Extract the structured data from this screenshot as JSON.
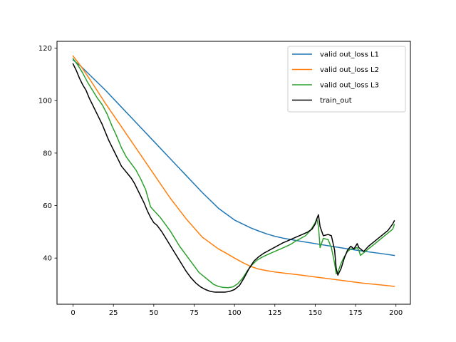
{
  "chart_data": {
    "type": "line",
    "title": "",
    "xlabel": "",
    "ylabel": "",
    "xlim": [
      -9.95,
      208.95
    ],
    "ylim": [
      22.4,
      122.6
    ],
    "xticks": [
      0,
      25,
      50,
      75,
      100,
      125,
      150,
      175,
      200
    ],
    "yticks": [
      40,
      60,
      80,
      100,
      120
    ],
    "grid": false,
    "legend_position": "top-right",
    "series": [
      {
        "name": "valid out_loss L1",
        "color": "#1f77b4",
        "x": [
          0,
          5,
          10,
          20,
          30,
          40,
          50,
          60,
          70,
          80,
          90,
          100,
          105,
          110,
          115,
          120,
          125,
          130,
          140,
          150,
          160,
          170,
          180,
          190,
          199
        ],
        "y": [
          115.5,
          113,
          110,
          104,
          97.5,
          91,
          84.5,
          78,
          71.5,
          65,
          59,
          54.5,
          53,
          51.5,
          50.3,
          49.2,
          48.3,
          47.6,
          46.5,
          45.5,
          44.5,
          43.5,
          42.6,
          41.8,
          41.0
        ]
      },
      {
        "name": "valid out_loss L2",
        "color": "#ff7f0e",
        "x": [
          0,
          5,
          10,
          20,
          30,
          40,
          50,
          60,
          70,
          80,
          90,
          95,
          100,
          105,
          110,
          115,
          120,
          125,
          130,
          140,
          150,
          160,
          170,
          180,
          190,
          199
        ],
        "y": [
          117,
          113,
          108.5,
          99,
          90,
          81,
          72,
          63,
          55,
          48,
          43.5,
          41.8,
          40,
          38.3,
          36.8,
          35.8,
          35.2,
          34.7,
          34.3,
          33.6,
          32.8,
          32,
          31.2,
          30.4,
          29.8,
          29.2
        ]
      },
      {
        "name": "valid out_loss L3",
        "color": "#2ca02c",
        "x": [
          0,
          3,
          6,
          9,
          12,
          15,
          18,
          21,
          24,
          27,
          30,
          33,
          36,
          39,
          42,
          45,
          48,
          51,
          54,
          57,
          60,
          63,
          66,
          69,
          72,
          75,
          78,
          81,
          84,
          87,
          90,
          93,
          96,
          99,
          102,
          105,
          108,
          111,
          114,
          117,
          120,
          123,
          126,
          129,
          132,
          135,
          138,
          141,
          144,
          147,
          150,
          151,
          152,
          153,
          155,
          158,
          160,
          162,
          163,
          164,
          166,
          168,
          170,
          172,
          174,
          176,
          177,
          178,
          180,
          183,
          186,
          189,
          192,
          195,
          198,
          199
        ],
        "y": [
          116,
          113.5,
          110.5,
          107,
          104,
          101,
          98.5,
          95,
          90.5,
          86.5,
          82,
          78.5,
          76,
          73.5,
          70,
          66,
          59.5,
          57.5,
          55.5,
          53,
          50.5,
          47.5,
          44.5,
          42,
          39.5,
          37,
          34.5,
          33,
          31.5,
          30,
          29.2,
          28.8,
          28.7,
          29,
          30.2,
          32.3,
          35.2,
          37.5,
          39.2,
          40.3,
          41.2,
          42,
          42.8,
          43.6,
          44.4,
          45.3,
          46.5,
          47.5,
          48.5,
          50.5,
          53.5,
          55,
          52,
          44,
          47.5,
          47,
          44,
          38,
          34,
          34.5,
          38,
          40.5,
          42.5,
          43.5,
          43.5,
          44,
          43,
          41,
          42,
          43.5,
          45,
          46.5,
          48,
          49.5,
          51,
          52.8
        ]
      },
      {
        "name": "train_out",
        "color": "#000000",
        "x": [
          0,
          2,
          4,
          6,
          8,
          10,
          12,
          14,
          16,
          18,
          20,
          22,
          24,
          26,
          28,
          30,
          32,
          34,
          36,
          38,
          40,
          42,
          44,
          46,
          48,
          50,
          52,
          55,
          58,
          61,
          64,
          67,
          70,
          73,
          76,
          79,
          82,
          85,
          88,
          91,
          94,
          97,
          100,
          103,
          106,
          109,
          112,
          115,
          118,
          121,
          124,
          127,
          130,
          133,
          136,
          139,
          142,
          145,
          148,
          150,
          151,
          152,
          153,
          155,
          158,
          160,
          162,
          163,
          164,
          166,
          168,
          170,
          172,
          174,
          176,
          177,
          178,
          180,
          183,
          186,
          189,
          192,
          195,
          198,
          199
        ],
        "y": [
          114,
          111.5,
          108.5,
          106,
          104,
          101,
          98.5,
          96,
          93.5,
          91,
          88,
          85,
          82.5,
          80,
          77.5,
          75,
          73.5,
          72,
          70.5,
          68.5,
          66,
          63.5,
          61,
          58,
          55.5,
          53.5,
          52.5,
          50,
          47,
          44,
          41,
          38,
          35,
          32.5,
          30.5,
          29,
          28,
          27.3,
          27,
          27,
          27,
          27.3,
          28,
          29.5,
          32.5,
          36,
          38.8,
          40.5,
          41.8,
          42.8,
          43.8,
          44.8,
          45.8,
          46.6,
          47.4,
          48.2,
          49,
          49.8,
          51,
          53,
          55,
          56.5,
          52,
          48.5,
          49,
          48.5,
          43,
          36,
          33.5,
          36,
          40,
          43,
          44.5,
          43.5,
          45.5,
          44,
          43.5,
          42.5,
          44.5,
          46,
          47.5,
          49,
          50.5,
          53,
          54.2
        ]
      }
    ]
  }
}
